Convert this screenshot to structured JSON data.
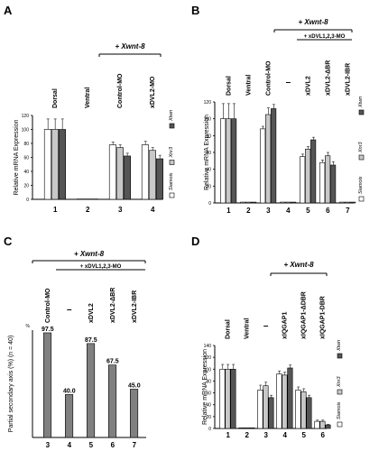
{
  "chart_data": [
    {
      "panel": "A",
      "type": "bar",
      "bracket_label": "+ Xwnt-8",
      "sub_bracket_label": "",
      "categories": [
        "Dorsal",
        "Ventral",
        "Control-MO",
        "xDVL2-MO"
      ],
      "lane_numbers": [
        "1",
        "2",
        "3",
        "4"
      ],
      "ylabel": "Relative mRNA Expression",
      "ylim": [
        0,
        120
      ],
      "yticks": [
        "0",
        "20",
        "40",
        "60",
        "80",
        "100",
        "120"
      ],
      "series": [
        {
          "name": "Siamois",
          "color": "#ffffff",
          "values": [
            100,
            0.5,
            78,
            78
          ],
          "errors": [
            15,
            0,
            4,
            5
          ]
        },
        {
          "name": "Xnr3",
          "color": "#c8c8c8",
          "values": [
            100,
            0.5,
            74,
            70
          ],
          "errors": [
            15,
            0,
            4,
            4
          ]
        },
        {
          "name": "Xtwn",
          "color": "#555555",
          "values": [
            100,
            0.5,
            62,
            58
          ],
          "errors": [
            15,
            0,
            4,
            5
          ]
        }
      ]
    },
    {
      "panel": "B",
      "type": "bar",
      "bracket_label": "+ Xwnt-8",
      "sub_bracket_label": "+ xDVL1,2,3-MO",
      "categories": [
        "Dorsal",
        "Ventral",
        "Control-MO",
        "–",
        "xDVL2",
        "xDVL2-ΔBR",
        "xDVL2-IBR"
      ],
      "lane_numbers": [
        "1",
        "2",
        "3",
        "4",
        "5",
        "6",
        "7"
      ],
      "ylabel": "Relative mRNA Expression",
      "ylim": [
        0,
        120
      ],
      "yticks": [
        "0",
        "20",
        "40",
        "60",
        "80",
        "100",
        "120"
      ],
      "series": [
        {
          "name": "Siamois",
          "color": "#ffffff",
          "values": [
            100,
            1,
            88,
            1,
            55,
            48,
            1
          ],
          "errors": [
            18,
            0,
            3,
            0,
            3,
            3,
            0
          ]
        },
        {
          "name": "Xnr3",
          "color": "#c8c8c8",
          "values": [
            100,
            1,
            105,
            1,
            64,
            56,
            1
          ],
          "errors": [
            18,
            0,
            8,
            0,
            3,
            4,
            0
          ]
        },
        {
          "name": "Xtwn",
          "color": "#555555",
          "values": [
            100,
            1,
            112,
            1,
            75,
            45,
            1
          ],
          "errors": [
            18,
            0,
            5,
            0,
            3,
            4,
            0
          ]
        }
      ]
    },
    {
      "panel": "C",
      "type": "bar",
      "bracket_label": "+ Xwnt-8",
      "sub_bracket_label": "+ xDVL1,2,3-MO",
      "categories": [
        "Control-MO",
        "–",
        "xDVL2",
        "xDVL2-ΔBR",
        "xDVL2-IBR"
      ],
      "lane_numbers": [
        "3",
        "4",
        "5",
        "6",
        "7"
      ],
      "ylabel": "Partial secondary axis (%) (n = 40)",
      "ylim": [
        0,
        100
      ],
      "yticks": [],
      "series": [
        {
          "name": "",
          "color": "#808080",
          "values": [
            97.5,
            40.0,
            87.5,
            67.5,
            45.0
          ]
        }
      ],
      "data_labels": [
        "97.5",
        "40.0",
        "87.5",
        "67.5",
        "45.0"
      ],
      "axis_unit": "%"
    },
    {
      "panel": "D",
      "type": "bar",
      "bracket_label": "+ Xwnt-8",
      "sub_bracket_label": "",
      "categories": [
        "Dorsal",
        "Ventral",
        "–",
        "xIQGAP1",
        "xIQGAP1-ΔDBR",
        "xIQGAP1-DBR"
      ],
      "lane_numbers": [
        "1",
        "2",
        "3",
        "4",
        "5",
        "6"
      ],
      "ylabel": "Relative mRNA Expression",
      "ylim": [
        0,
        140
      ],
      "yticks": [
        "0",
        "20",
        "40",
        "60",
        "80",
        "100",
        "120",
        "140"
      ],
      "series": [
        {
          "name": "Siamois",
          "color": "#ffffff",
          "values": [
            100,
            1,
            65,
            92,
            65,
            12
          ],
          "errors": [
            8,
            0,
            8,
            5,
            5,
            2
          ]
        },
        {
          "name": "Xnr3",
          "color": "#c8c8c8",
          "values": [
            100,
            1,
            72,
            90,
            62,
            12
          ],
          "errors": [
            8,
            0,
            6,
            5,
            5,
            2
          ]
        },
        {
          "name": "Xtwn",
          "color": "#555555",
          "values": [
            100,
            1,
            52,
            102,
            52,
            6
          ],
          "errors": [
            8,
            0,
            4,
            5,
            4,
            1
          ]
        }
      ]
    }
  ]
}
